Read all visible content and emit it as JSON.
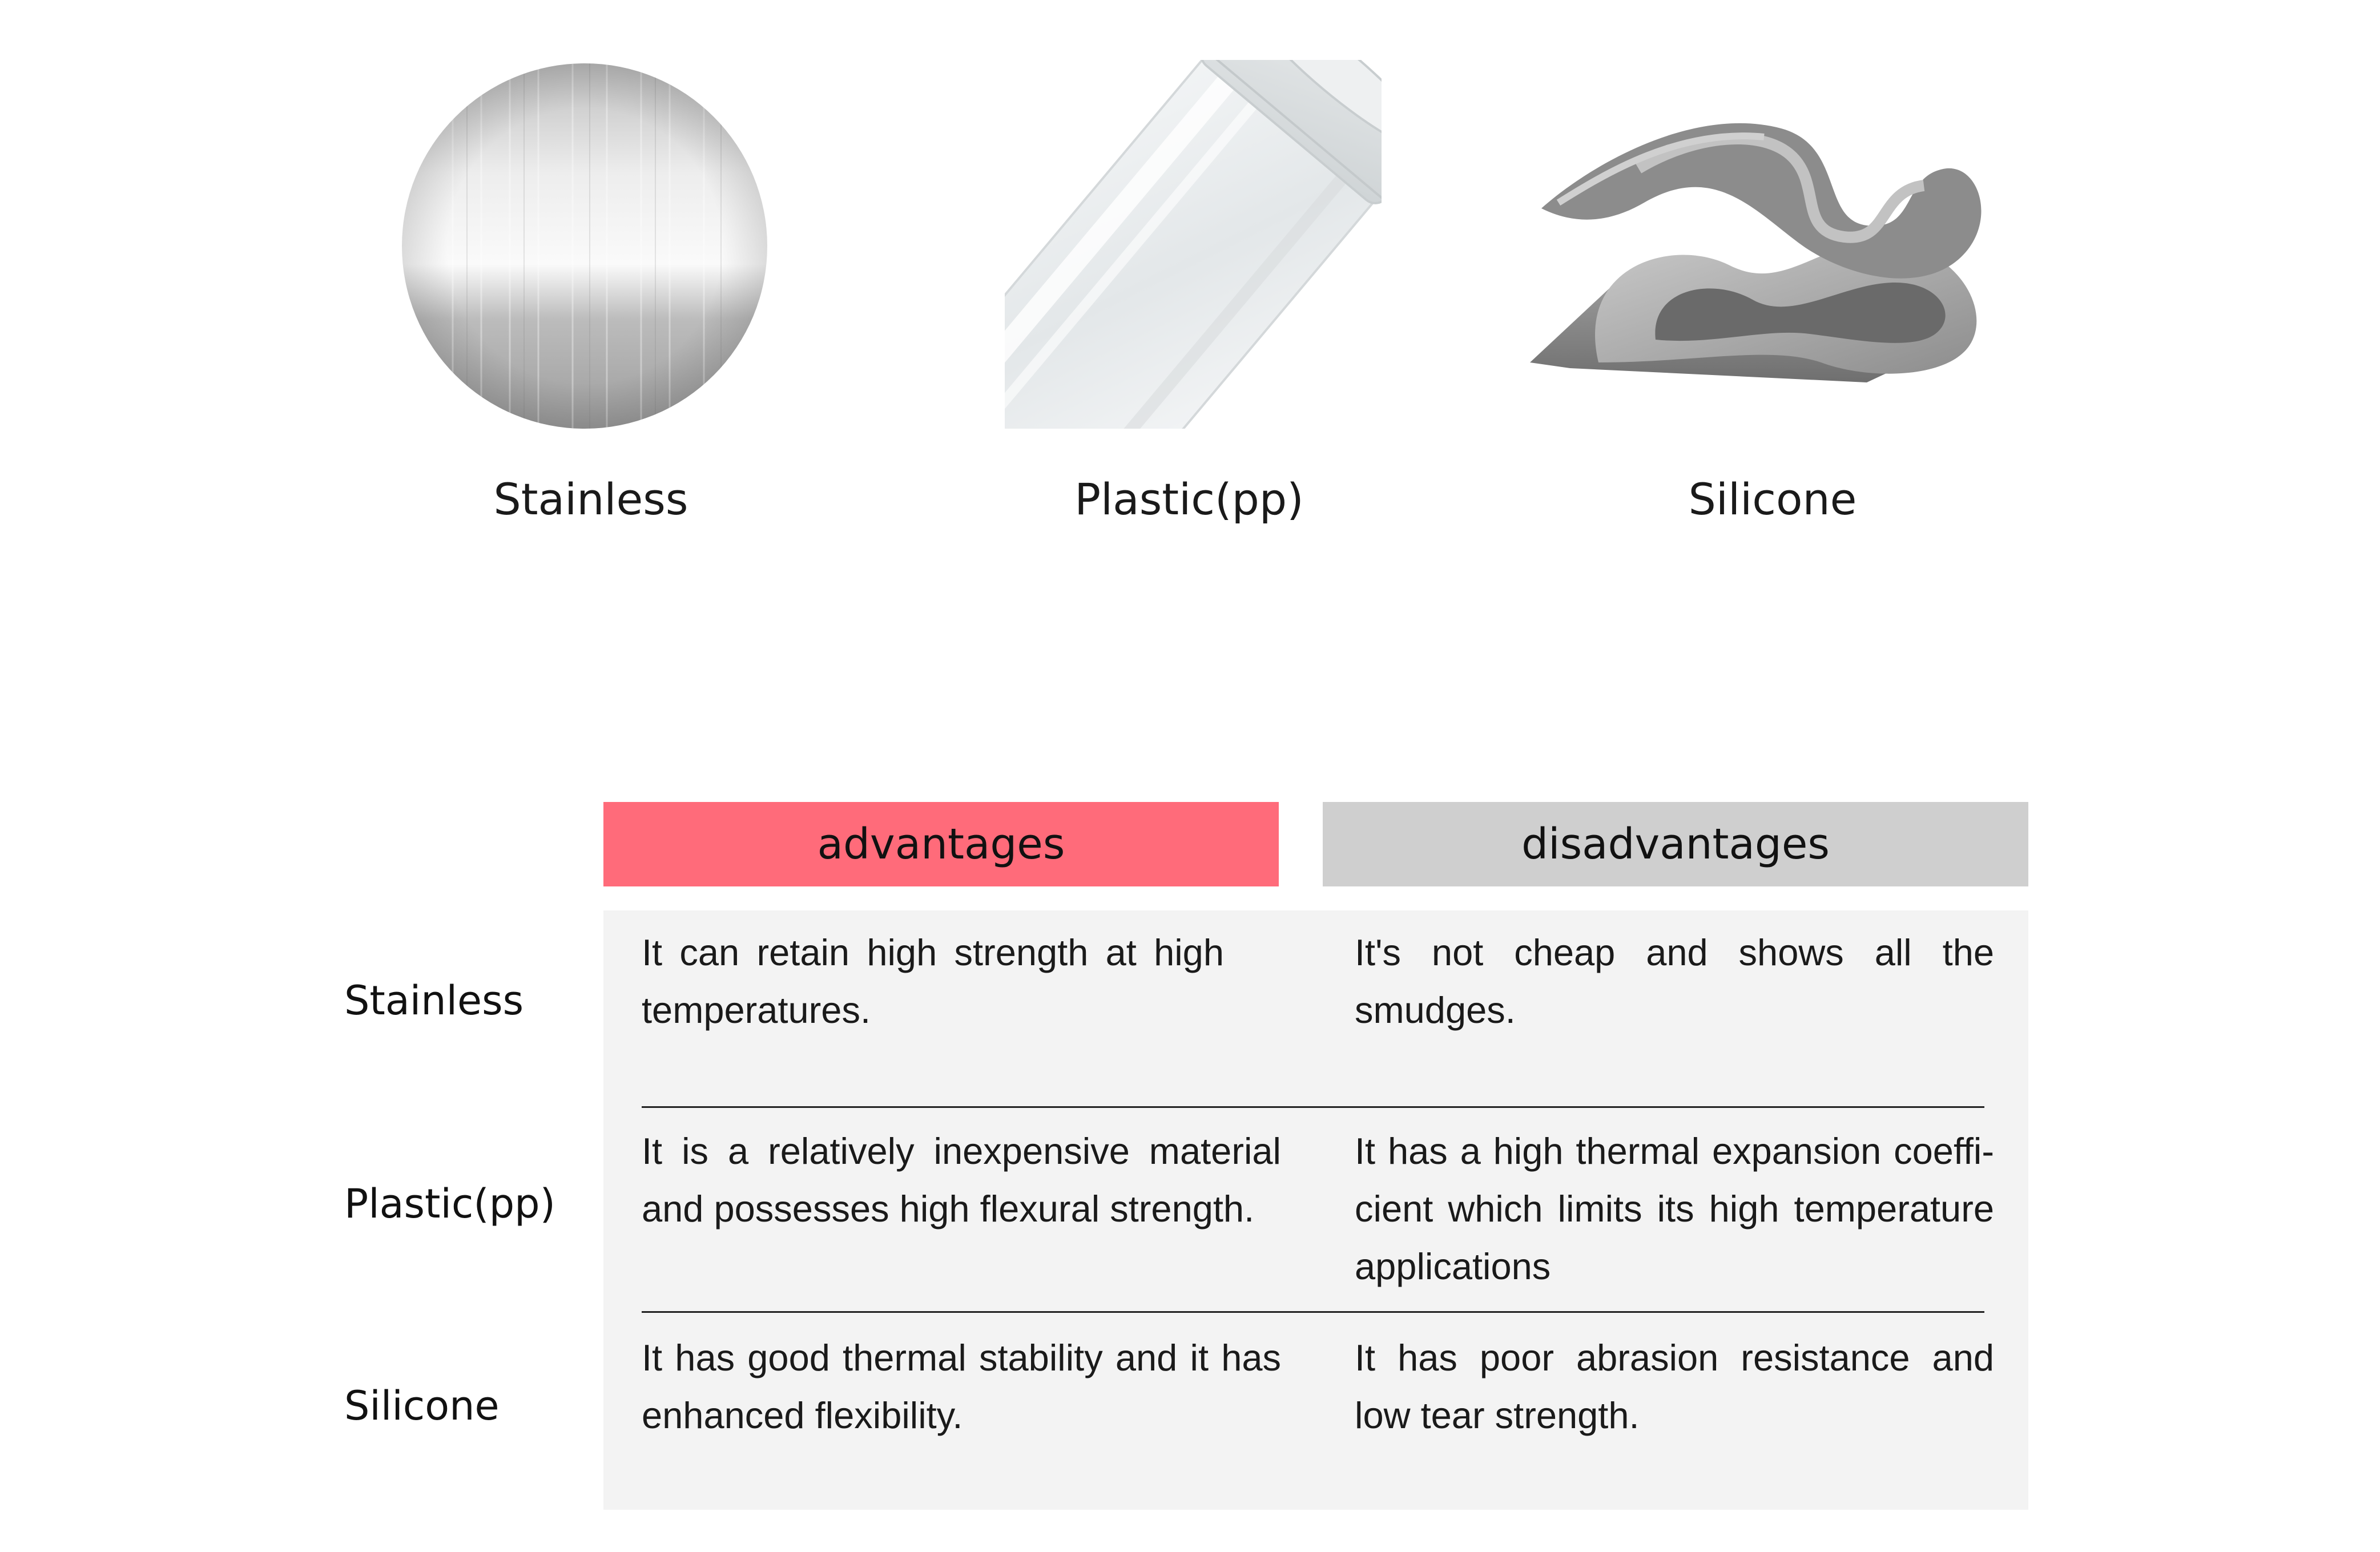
{
  "colors": {
    "advantages_header": "#ff6b7a",
    "disadvantages_header": "#cfcfcf",
    "panel_background": "#f3f3f3"
  },
  "products": [
    {
      "label": "Stainless",
      "icon": "brushed-steel-disc-icon"
    },
    {
      "label": "Plastic(pp)",
      "icon": "clear-plastic-tube-icon"
    },
    {
      "label": "Silicone",
      "icon": "silicone-sheet-icon"
    }
  ],
  "table": {
    "headers": {
      "advantages": "advantages",
      "disadvantages": "disadvantages"
    },
    "rows": [
      {
        "label": "Stainless",
        "advantages": "It can retain high strength at high temperatures.",
        "disadvantages": "It's not cheap and shows all the smudges."
      },
      {
        "label": "Plastic(pp)",
        "advantages": "It is a relatively inexpensive material and possesses high flexural strength.",
        "disadvantages": "It has a high thermal expansion coeffi- cient which limits its high temperature applications"
      },
      {
        "label": "Silicone",
        "advantages": "It has good thermal stability and it has enhanced flexibility.",
        "disadvantages": "It has poor abrasion resistance and low tear strength."
      }
    ]
  }
}
